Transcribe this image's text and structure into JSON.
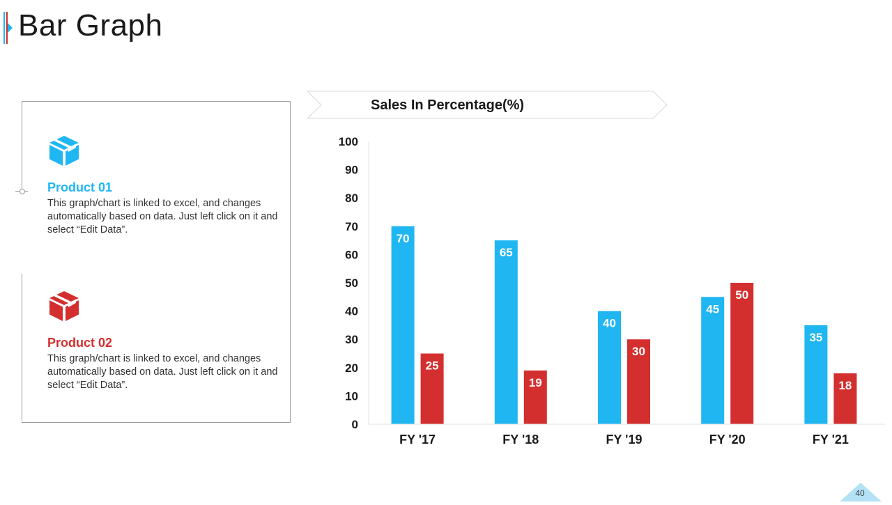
{
  "slide": {
    "title": "Bar Graph",
    "page_number": "40"
  },
  "products": [
    {
      "name": "Product 01",
      "description": "This graph/chart is linked to excel, and changes automatically based on data. Just left click on it and select “Edit Data”.",
      "color": "#1fb6f2",
      "icon": "box-icon"
    },
    {
      "name": "Product 02",
      "description": "This graph/chart is linked to excel, and changes automatically based on data. Just left click on it and select “Edit Data”.",
      "color": "#d32f2f",
      "icon": "box-icon"
    }
  ],
  "chart_data": {
    "type": "bar",
    "title": "Sales In Percentage(%)",
    "xlabel": "",
    "ylabel": "",
    "categories": [
      "FY '17",
      "FY '18",
      "FY '19",
      "FY '20",
      "FY '21"
    ],
    "series": [
      {
        "name": "Product 01",
        "values": [
          70,
          65,
          40,
          45,
          35
        ],
        "color": "#1fb6f2"
      },
      {
        "name": "Product 02",
        "values": [
          25,
          19,
          30,
          50,
          18
        ],
        "color": "#d32f2f"
      }
    ],
    "ylim": [
      0,
      100
    ],
    "yticks": [
      0,
      10,
      20,
      30,
      40,
      50,
      60,
      70,
      80,
      90,
      100
    ],
    "grid": false,
    "data_labels": true
  }
}
